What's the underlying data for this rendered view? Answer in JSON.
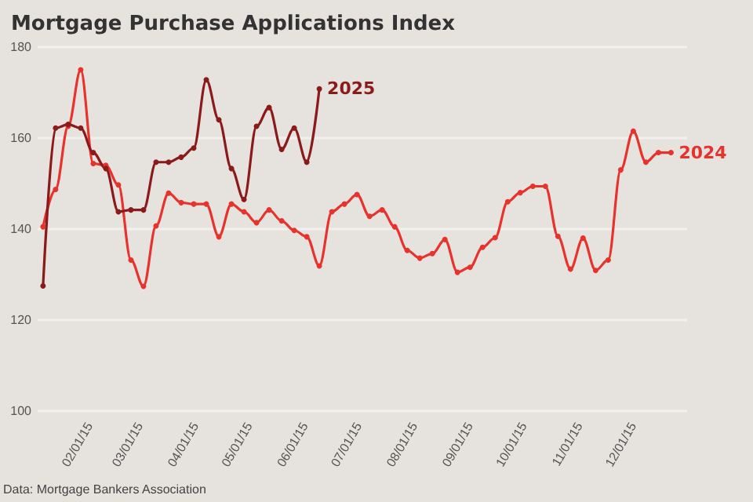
{
  "chart_data": {
    "type": "line",
    "title": "Mortgage Purchase Applications Index",
    "annotations": [
      "Data: Mortgage Bankers Association"
    ],
    "x": [
      "2015-01-06",
      "2015-01-13",
      "2015-01-20",
      "2015-01-27",
      "2015-02-03",
      "2015-02-10",
      "2015-02-17",
      "2015-02-24",
      "2015-03-03",
      "2015-03-10",
      "2015-03-17",
      "2015-03-24",
      "2015-03-31",
      "2015-04-07",
      "2015-04-14",
      "2015-04-21",
      "2015-04-28",
      "2015-05-05",
      "2015-05-12",
      "2015-05-19",
      "2015-05-26",
      "2015-06-02",
      "2015-06-09",
      "2015-06-16",
      "2015-06-23",
      "2015-06-30",
      "2015-07-07",
      "2015-07-14",
      "2015-07-21",
      "2015-07-28",
      "2015-08-04",
      "2015-08-11",
      "2015-08-18",
      "2015-08-25",
      "2015-09-01",
      "2015-09-08",
      "2015-09-15",
      "2015-09-22",
      "2015-09-29",
      "2015-10-06",
      "2015-10-13",
      "2015-10-20",
      "2015-10-27",
      "2015-11-03",
      "2015-11-10",
      "2015-11-17",
      "2015-11-24",
      "2015-12-01",
      "2015-12-08",
      "2015-12-15",
      "2015-12-22"
    ],
    "series": [
      {
        "name": "2024",
        "color": "#e8322c",
        "values": [
          140.5,
          148.7,
          162.6,
          175,
          154.4,
          154,
          149.7,
          133.2,
          127.4,
          140.7,
          147.9,
          145.8,
          145.5,
          145.5,
          138.3,
          145.5,
          143.8,
          141.4,
          144.2,
          141.8,
          139.7,
          138.3,
          131.9,
          143.8,
          145.5,
          147.6,
          142.8,
          144.2,
          140.5,
          135.3,
          133.6,
          134.6,
          137.7,
          130.5,
          131.6,
          136,
          138.1,
          146,
          148,
          149.4,
          149.4,
          138.4,
          131.2,
          138,
          130.9,
          133.2,
          153,
          161.5,
          154.7,
          156.8,
          156.8
        ]
      },
      {
        "name": "2025",
        "color": "#8b1a1a",
        "x": [
          "2015-01-06",
          "2015-01-13",
          "2015-01-20",
          "2015-01-27",
          "2015-02-03",
          "2015-02-10",
          "2015-02-17",
          "2015-02-24",
          "2015-03-03",
          "2015-03-10",
          "2015-03-17",
          "2015-03-24",
          "2015-03-31",
          "2015-04-07",
          "2015-04-14",
          "2015-04-21",
          "2015-04-28",
          "2015-05-05",
          "2015-05-12",
          "2015-05-19",
          "2015-05-26",
          "2015-06-02",
          "2015-06-09"
        ],
        "values": [
          127.5,
          162.2,
          163,
          162.2,
          156.8,
          153.3,
          143.8,
          144.2,
          144.2,
          154.7,
          154.7,
          155.8,
          157.8,
          172.8,
          164,
          153.3,
          146.5,
          162.6,
          166.7,
          157.5,
          162.2,
          154.7,
          170.8
        ]
      }
    ],
    "xlim": [
      "2015-01-03",
      "2015-12-31"
    ],
    "xticks": [
      {
        "value": "2015-02-01",
        "label": "02/01/15"
      },
      {
        "value": "2015-03-01",
        "label": "03/01/15"
      },
      {
        "value": "2015-04-01",
        "label": "04/01/15"
      },
      {
        "value": "2015-05-01",
        "label": "05/01/15"
      },
      {
        "value": "2015-06-01",
        "label": "06/01/15"
      },
      {
        "value": "2015-07-01",
        "label": "07/01/15"
      },
      {
        "value": "2015-08-01",
        "label": "08/01/15"
      },
      {
        "value": "2015-09-01",
        "label": "09/01/15"
      },
      {
        "value": "2015-10-01",
        "label": "10/01/15"
      },
      {
        "value": "2015-11-01",
        "label": "11/01/15"
      },
      {
        "value": "2015-12-01",
        "label": "12/01/15"
      }
    ],
    "ylim": [
      100,
      180
    ],
    "yticks": [
      100,
      120,
      140,
      160,
      180
    ],
    "grid": "y",
    "marker": "circle",
    "line_style": "solid"
  }
}
